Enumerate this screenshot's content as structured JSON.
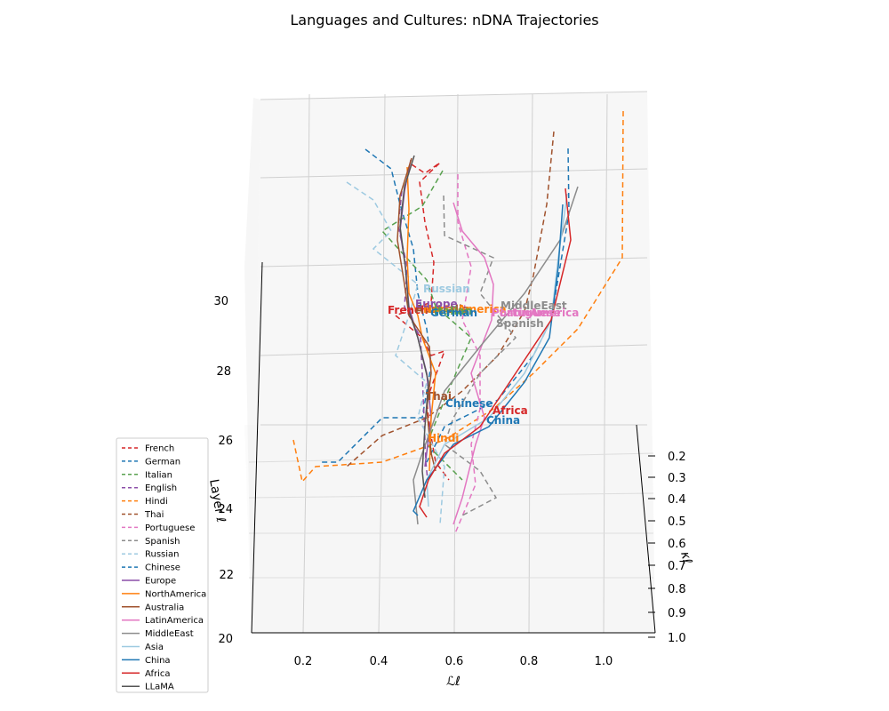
{
  "chart_data": {
    "type": "line",
    "title": "Languages and Cultures: nDNA Trajectories",
    "xlabel": "ℒℓ",
    "ylabel": "κℓ",
    "zlabel": "Layer ℓ",
    "x_ticks": [
      "0.2",
      "0.4",
      "0.6",
      "0.8",
      "1.0"
    ],
    "y_ticks": [
      "0.2",
      "0.3",
      "0.4",
      "0.5",
      "0.6",
      "0.7",
      "0.8",
      "0.9",
      "1.0"
    ],
    "z_ticks": [
      "20",
      "22",
      "24",
      "26",
      "28",
      "30"
    ],
    "legend_position": "lower-left",
    "legend": [
      {
        "name": "French",
        "color": "#d62728",
        "style": "dashed"
      },
      {
        "name": "German",
        "color": "#1f77b4",
        "style": "dashed"
      },
      {
        "name": "Italian",
        "color": "#59a14f",
        "style": "dashed"
      },
      {
        "name": "English",
        "color": "#8c4fa8",
        "style": "dashed"
      },
      {
        "name": "Hindi",
        "color": "#ff7f0e",
        "style": "dashed"
      },
      {
        "name": "Thai",
        "color": "#a0522d",
        "style": "dashed"
      },
      {
        "name": "Portuguese",
        "color": "#e377c2",
        "style": "dashed"
      },
      {
        "name": "Spanish",
        "color": "#8c8c8c",
        "style": "dashed"
      },
      {
        "name": "Russian",
        "color": "#9ecae1",
        "style": "dashed"
      },
      {
        "name": "Chinese",
        "color": "#1f77b4",
        "style": "dashed"
      },
      {
        "name": "Europe",
        "color": "#8c4fa8",
        "style": "solid"
      },
      {
        "name": "NorthAmerica",
        "color": "#ff7f0e",
        "style": "solid"
      },
      {
        "name": "Australia",
        "color": "#a0522d",
        "style": "solid"
      },
      {
        "name": "LatinAmerica",
        "color": "#e377c2",
        "style": "solid"
      },
      {
        "name": "MiddleEast",
        "color": "#8c8c8c",
        "style": "solid"
      },
      {
        "name": "Asia",
        "color": "#9ecae1",
        "style": "solid"
      },
      {
        "name": "China",
        "color": "#1f77b4",
        "style": "solid"
      },
      {
        "name": "Africa",
        "color": "#d62728",
        "style": "solid"
      },
      {
        "name": "LLaMA",
        "color": "#555555",
        "style": "solid"
      }
    ],
    "annotations": [
      {
        "text": "French",
        "color": "#d62728"
      },
      {
        "text": "Australia",
        "color": "#a0522d"
      },
      {
        "text": "NorthAmerica",
        "color": "#ff7f0e"
      },
      {
        "text": "Europe",
        "color": "#8c4fa8"
      },
      {
        "text": "Italian",
        "color": "#59a14f"
      },
      {
        "text": "German",
        "color": "#1f77b4"
      },
      {
        "text": "Russian",
        "color": "#9ecae1"
      },
      {
        "text": "MiddleEast",
        "color": "#8c8c8c"
      },
      {
        "text": "Spanish",
        "color": "#8c8c8c"
      },
      {
        "text": "Portuguese",
        "color": "#e377c2"
      },
      {
        "text": "LatinAmerica",
        "color": "#e377c2"
      },
      {
        "text": "Thai",
        "color": "#a0522d"
      },
      {
        "text": "Chinese",
        "color": "#1f77b4"
      },
      {
        "text": "Africa",
        "color": "#d62728"
      },
      {
        "text": "China",
        "color": "#1f77b4"
      },
      {
        "text": "Hindi",
        "color": "#ff7f0e"
      }
    ]
  }
}
